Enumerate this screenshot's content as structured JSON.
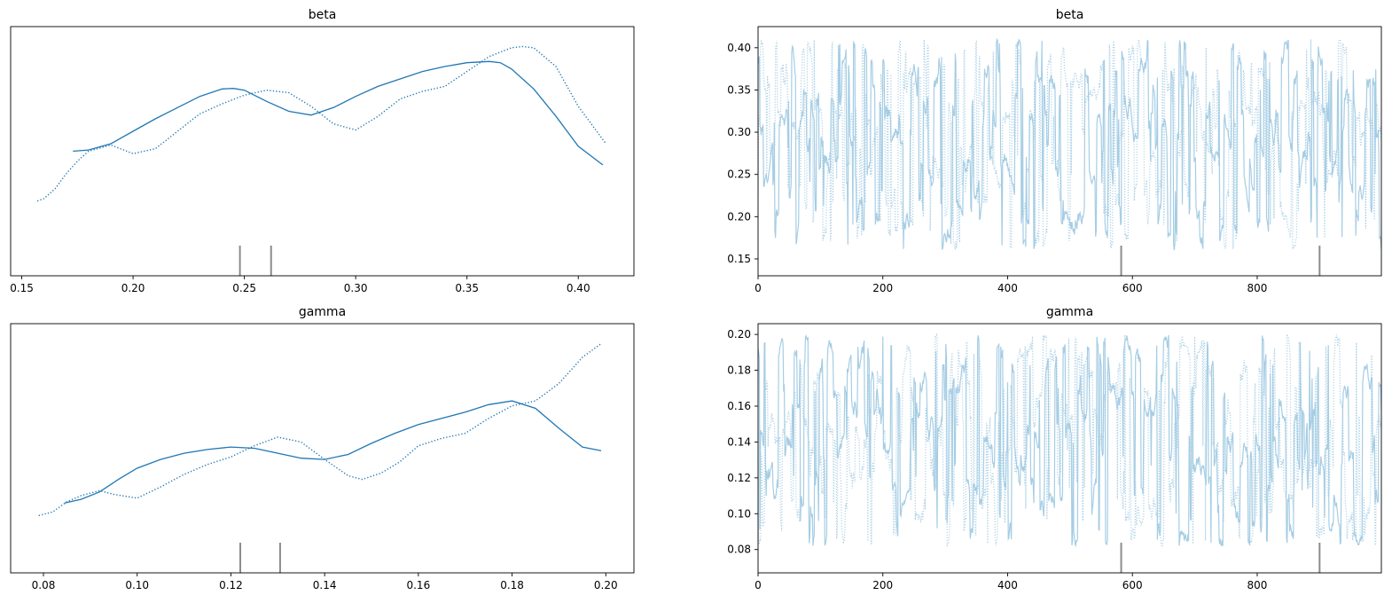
{
  "chart_data": [
    {
      "type": "line",
      "title": "beta",
      "xlabel": "",
      "ylabel": "",
      "xlim": [
        0.145,
        0.425
      ],
      "ylim": [
        0,
        1
      ],
      "grid": false,
      "legend": "none",
      "yticks_visible": false,
      "xticks": [
        0.15,
        0.2,
        0.25,
        0.3,
        0.35,
        0.4
      ],
      "xtick_labels": [
        "0.15",
        "0.20",
        "0.25",
        "0.30",
        "0.35",
        "0.40"
      ],
      "series": [
        {
          "style": "solid",
          "color": "#1f77b4",
          "x": [
            0.173,
            0.18,
            0.19,
            0.2,
            0.21,
            0.22,
            0.23,
            0.24,
            0.245,
            0.25,
            0.26,
            0.27,
            0.28,
            0.29,
            0.3,
            0.31,
            0.32,
            0.33,
            0.34,
            0.35,
            0.36,
            0.365,
            0.37,
            0.38,
            0.39,
            0.4,
            0.411
          ],
          "y": [
            0.5,
            0.505,
            0.53,
            0.58,
            0.63,
            0.675,
            0.72,
            0.75,
            0.752,
            0.745,
            0.7,
            0.66,
            0.645,
            0.675,
            0.72,
            0.76,
            0.79,
            0.82,
            0.84,
            0.855,
            0.86,
            0.855,
            0.83,
            0.75,
            0.64,
            0.52,
            0.445
          ]
        },
        {
          "style": "dotted",
          "color": "#1f77b4",
          "x": [
            0.157,
            0.16,
            0.165,
            0.17,
            0.175,
            0.18,
            0.19,
            0.2,
            0.21,
            0.22,
            0.23,
            0.24,
            0.25,
            0.26,
            0.27,
            0.28,
            0.29,
            0.3,
            0.31,
            0.32,
            0.33,
            0.34,
            0.35,
            0.36,
            0.37,
            0.375,
            0.38,
            0.39,
            0.4,
            0.412
          ],
          "y": [
            0.3,
            0.31,
            0.35,
            0.41,
            0.46,
            0.5,
            0.525,
            0.49,
            0.51,
            0.58,
            0.65,
            0.69,
            0.725,
            0.745,
            0.735,
            0.68,
            0.61,
            0.585,
            0.64,
            0.71,
            0.74,
            0.76,
            0.82,
            0.88,
            0.915,
            0.92,
            0.915,
            0.84,
            0.68,
            0.535
          ]
        }
      ],
      "rug_x": [
        0.248,
        0.262
      ]
    },
    {
      "type": "line",
      "title": "beta",
      "xlabel": "",
      "ylabel": "",
      "xlim": [
        0,
        999
      ],
      "ylim": [
        0.13,
        0.425
      ],
      "grid": false,
      "legend": "none",
      "xticks": [
        0,
        200,
        400,
        600,
        800
      ],
      "xtick_labels": [
        "0",
        "200",
        "400",
        "600",
        "800"
      ],
      "yticks": [
        0.15,
        0.2,
        0.25,
        0.3,
        0.35,
        0.4
      ],
      "ytick_labels": [
        "0.15",
        "0.20",
        "0.25",
        "0.30",
        "0.35",
        "0.40"
      ],
      "trace_range": [
        0.16,
        0.41
      ],
      "trace_colors": {
        "solid": "#a6cde4",
        "dotted": "#a6cde4"
      },
      "trace_draws": 1000,
      "rug_x": [
        582,
        900
      ]
    },
    {
      "type": "line",
      "title": "gamma",
      "xlabel": "",
      "ylabel": "",
      "xlim": [
        0.073,
        0.206
      ],
      "ylim": [
        0,
        1
      ],
      "grid": false,
      "legend": "none",
      "yticks_visible": false,
      "xticks": [
        0.08,
        0.1,
        0.12,
        0.14,
        0.16,
        0.18,
        0.2
      ],
      "xtick_labels": [
        "0.08",
        "0.10",
        "0.12",
        "0.14",
        "0.16",
        "0.18",
        "0.20"
      ],
      "series": [
        {
          "style": "solid",
          "color": "#1f77b4",
          "x": [
            0.0845,
            0.088,
            0.092,
            0.096,
            0.1,
            0.105,
            0.11,
            0.115,
            0.12,
            0.125,
            0.13,
            0.135,
            0.14,
            0.145,
            0.15,
            0.155,
            0.16,
            0.165,
            0.17,
            0.175,
            0.18,
            0.185,
            0.19,
            0.195,
            0.199
          ],
          "y": [
            0.28,
            0.295,
            0.325,
            0.375,
            0.42,
            0.455,
            0.48,
            0.495,
            0.505,
            0.5,
            0.48,
            0.46,
            0.455,
            0.475,
            0.52,
            0.56,
            0.595,
            0.62,
            0.645,
            0.675,
            0.69,
            0.66,
            0.58,
            0.505,
            0.49
          ]
        },
        {
          "style": "dotted",
          "color": "#1f77b4",
          "x": [
            0.079,
            0.082,
            0.085,
            0.088,
            0.092,
            0.095,
            0.1,
            0.105,
            0.11,
            0.115,
            0.12,
            0.125,
            0.13,
            0.135,
            0.14,
            0.145,
            0.148,
            0.152,
            0.156,
            0.16,
            0.165,
            0.17,
            0.175,
            0.18,
            0.185,
            0.19,
            0.195,
            0.199
          ],
          "y": [
            0.23,
            0.245,
            0.285,
            0.31,
            0.33,
            0.315,
            0.3,
            0.345,
            0.395,
            0.435,
            0.465,
            0.51,
            0.545,
            0.525,
            0.455,
            0.39,
            0.375,
            0.4,
            0.445,
            0.51,
            0.54,
            0.56,
            0.62,
            0.67,
            0.69,
            0.76,
            0.865,
            0.92
          ]
        }
      ],
      "rug_x": [
        0.122,
        0.1305
      ]
    },
    {
      "type": "line",
      "title": "gamma",
      "xlabel": "",
      "ylabel": "",
      "xlim": [
        0,
        999
      ],
      "ylim": [
        0.067,
        0.206
      ],
      "grid": false,
      "legend": "none",
      "xticks": [
        0,
        200,
        400,
        600,
        800
      ],
      "xtick_labels": [
        "0",
        "200",
        "400",
        "600",
        "800"
      ],
      "yticks": [
        0.08,
        0.1,
        0.12,
        0.14,
        0.16,
        0.18,
        0.2
      ],
      "ytick_labels": [
        "0.08",
        "0.10",
        "0.12",
        "0.14",
        "0.16",
        "0.18",
        "0.20"
      ],
      "trace_range": [
        0.082,
        0.2
      ],
      "trace_colors": {
        "solid": "#a6cde4",
        "dotted": "#a6cde4"
      },
      "trace_draws": 1000,
      "rug_x": [
        582,
        900
      ]
    }
  ]
}
